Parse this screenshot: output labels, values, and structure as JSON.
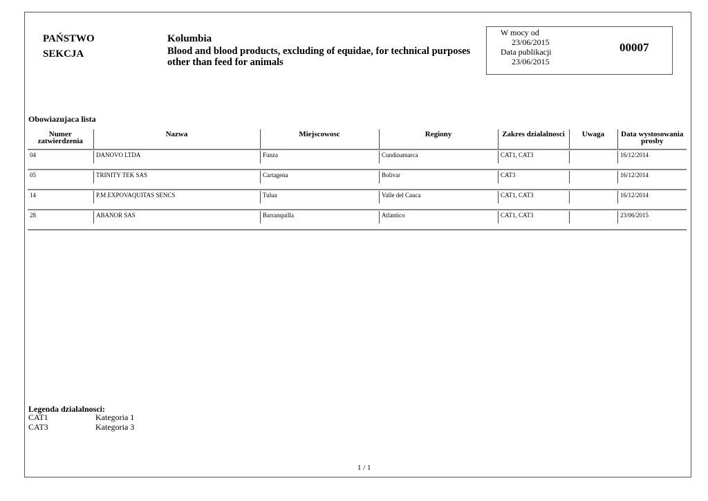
{
  "header": {
    "country_label": "PAŃSTWO",
    "section_label": "SEKCJA",
    "country": "Kolumbia",
    "section": "Blood and blood products, excluding of equidae, for technical purposes other than feed for animals",
    "valid_from_label": "W mocy od",
    "valid_from": "23/06/2015",
    "published_label": "Data publikacji",
    "published": "23/06/2015",
    "number": "00007"
  },
  "list_title": "Obowiazujaca lista",
  "columns": [
    "Numer zatwierdzenia",
    "Nazwa",
    "Miejscowosc",
    "Regiony",
    "Zakres dzialalnosci",
    "Uwaga",
    "Data wystosowania prosby"
  ],
  "rows": [
    [
      "04",
      "DANOVO LTDA",
      "Funza",
      "Cundinamarca",
      "CAT1, CAT3",
      "",
      "16/12/2014"
    ],
    [
      "05",
      "TRINITY TEK SAS",
      "Cartagena",
      "Bolivar",
      "CAT3",
      "",
      "16/12/2014"
    ],
    [
      "14",
      "P.M EXPOVAQUITAS SENCS",
      "Tulua",
      "Valle del Cauca",
      "CAT1, CAT3",
      "",
      "16/12/2014"
    ],
    [
      "28",
      "ABANOR SAS",
      "Barranquilla",
      "Atlantico",
      "CAT1, CAT3",
      "",
      "23/06/2015"
    ]
  ],
  "legend": {
    "title": "Legenda dzialalnosci:",
    "items": [
      {
        "code": "CAT1",
        "label": "Kategoria 1"
      },
      {
        "code": "CAT3",
        "label": "Kategoria 3"
      }
    ]
  },
  "page": "1 /  1"
}
